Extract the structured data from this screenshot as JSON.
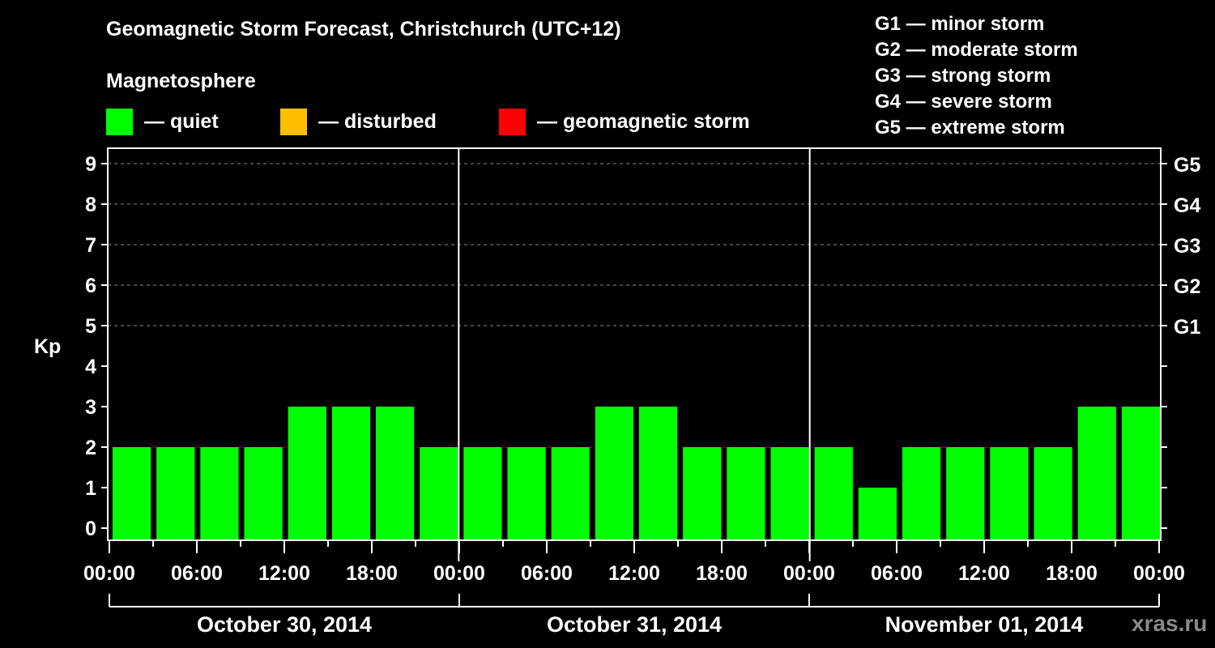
{
  "header": {
    "title": "Geomagnetic Storm Forecast, Christchurch (UTC+12)",
    "subtitle": "Magnetosphere"
  },
  "legend": [
    {
      "label": "— quiet",
      "color": "#00ff00"
    },
    {
      "label": "— disturbed",
      "color": "#ffbf00"
    },
    {
      "label": "— geomagnetic storm",
      "color": "#ff0000"
    }
  ],
  "storm_scale": [
    "G1 — minor storm",
    "G2 — moderate storm",
    "G3 — strong storm",
    "G4 — severe storm",
    "G5 — extreme storm"
  ],
  "watermark": "xras.ru",
  "chart_data": {
    "type": "bar",
    "title": "Geomagnetic Storm Forecast, Christchurch (UTC+12)",
    "ylabel": "Kp",
    "xlabel": "",
    "ylim": [
      0,
      9
    ],
    "yticks": [
      0,
      1,
      2,
      3,
      4,
      5,
      6,
      7,
      8,
      9
    ],
    "right_axis_labels": [
      {
        "kp": 5,
        "label": "G1"
      },
      {
        "kp": 6,
        "label": "G2"
      },
      {
        "kp": 7,
        "label": "G3"
      },
      {
        "kp": 8,
        "label": "G4"
      },
      {
        "kp": 9,
        "label": "G5"
      }
    ],
    "grid": "dashed horizontal at Kp 5-9",
    "x_tick_labels": [
      "00:00",
      "06:00",
      "12:00",
      "18:00",
      "00:00",
      "06:00",
      "12:00",
      "18:00",
      "00:00",
      "06:00",
      "12:00",
      "18:00",
      "00:00"
    ],
    "days": [
      "October 30, 2014",
      "October 31, 2014",
      "November 01, 2014"
    ],
    "interval_hours": 3,
    "categories": [
      "Oct30 00-03",
      "Oct30 03-06",
      "Oct30 06-09",
      "Oct30 09-12",
      "Oct30 12-15",
      "Oct30 15-18",
      "Oct30 18-21",
      "Oct30 21-24",
      "Oct31 00-03",
      "Oct31 03-06",
      "Oct31 06-09",
      "Oct31 09-12",
      "Oct31 12-15",
      "Oct31 15-18",
      "Oct31 18-21",
      "Oct31 21-24",
      "Nov01 00-03",
      "Nov01 03-06",
      "Nov01 06-09",
      "Nov01 09-12",
      "Nov01 12-15",
      "Nov01 15-18",
      "Nov01 18-21",
      "Nov01 21-24"
    ],
    "values": [
      2,
      2,
      2,
      2,
      3,
      3,
      3,
      2,
      2,
      2,
      2,
      3,
      3,
      2,
      2,
      2,
      2,
      1,
      2,
      2,
      2,
      2,
      3,
      3
    ],
    "status": [
      "quiet",
      "quiet",
      "quiet",
      "quiet",
      "quiet",
      "quiet",
      "quiet",
      "quiet",
      "quiet",
      "quiet",
      "quiet",
      "quiet",
      "quiet",
      "quiet",
      "quiet",
      "quiet",
      "quiet",
      "quiet",
      "quiet",
      "quiet",
      "quiet",
      "quiet",
      "quiet",
      "quiet"
    ],
    "status_colors": {
      "quiet": "#00ff00",
      "disturbed": "#ffbf00",
      "storm": "#ff0000"
    }
  }
}
